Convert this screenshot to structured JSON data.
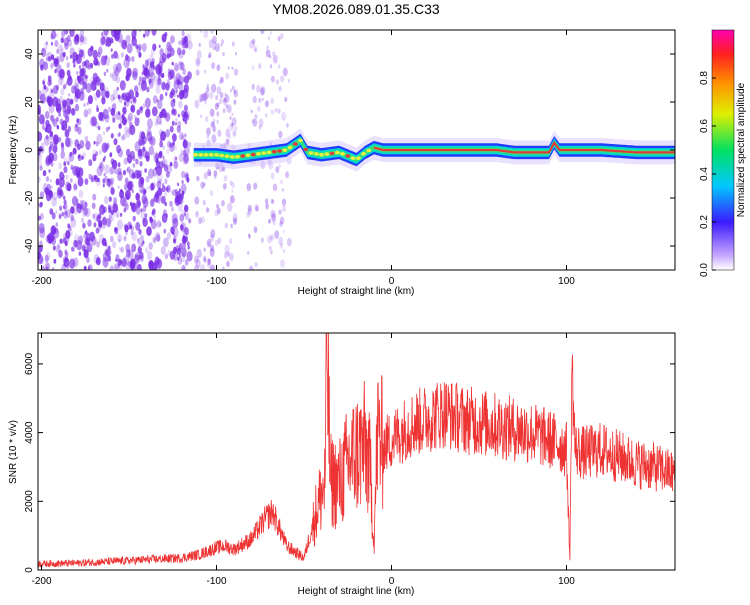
{
  "figure": {
    "title": "YM08.2026.089.01.35.C33"
  },
  "colors": {
    "scatter": "#7a2ee6",
    "band_edge": "#1f3cff",
    "band_mid": "#00d8c8",
    "band_peak": "#e23a3a",
    "snr_line": "#ee3333"
  },
  "chart_data": [
    {
      "type": "heatmap",
      "xlabel": "Height of straight line (km)",
      "ylabel": "Frequency (Hz)",
      "xlim": [
        -202,
        162
      ],
      "ylim": [
        -50,
        50
      ],
      "x_ticks": [
        -200,
        -100,
        0,
        100
      ],
      "y_ticks": [
        -40,
        -20,
        0,
        20,
        40
      ],
      "grid": false,
      "colorbar": {
        "label": "Normalized spectral amplitude",
        "range": [
          0,
          1
        ],
        "ticks": [
          "0.0",
          "0.2",
          "0.4",
          "0.6",
          "0.8"
        ],
        "tick_values": [
          0.0,
          0.2,
          0.4,
          0.6,
          0.8
        ],
        "colormap": "rainbow"
      },
      "noise_region_x": [
        -202,
        -115
      ],
      "sparse_noise_x": [
        -112,
        -58
      ],
      "band_centerline": {
        "x": [
          -113,
          -100,
          -90,
          -80,
          -70,
          -60,
          -52,
          -48,
          -40,
          -30,
          -20,
          -15,
          -10,
          -5,
          0,
          20,
          40,
          60,
          70,
          80,
          90,
          93,
          96,
          100,
          120,
          140,
          162
        ],
        "y": [
          -2,
          -2,
          -3,
          -2,
          -1,
          0,
          4,
          -1,
          -2,
          -1,
          -4,
          -1,
          1,
          0,
          0,
          0,
          0,
          0,
          -1,
          -1,
          -1,
          3,
          0,
          0,
          0,
          -1,
          -1
        ]
      }
    },
    {
      "type": "line",
      "xlabel": "Height of straight line (km)",
      "ylabel": "SNR (10 * v/v)",
      "xlim": [
        -202,
        162
      ],
      "ylim": [
        0,
        6900
      ],
      "x_ticks": [
        -200,
        -100,
        0,
        100
      ],
      "y_ticks": [
        0,
        2000,
        4000,
        6000
      ],
      "grid": false,
      "series": [
        {
          "x": [
            -202,
            -180,
            -160,
            -140,
            -120,
            -110,
            -100,
            -95,
            -90,
            -80,
            -72,
            -68,
            -60,
            -50,
            -42,
            -38,
            -37,
            -35,
            -30,
            -25,
            -20,
            -15,
            -12,
            -10,
            -8,
            -5,
            0,
            10,
            20,
            30,
            40,
            50,
            60,
            70,
            80,
            90,
            95,
            100,
            102,
            103,
            105,
            110,
            120,
            130,
            140,
            150,
            162
          ],
          "y": [
            180,
            200,
            250,
            300,
            350,
            450,
            650,
            700,
            600,
            900,
            1500,
            1700,
            700,
            350,
            1900,
            2500,
            6900,
            2600,
            2500,
            3100,
            3400,
            3600,
            2800,
            800,
            4000,
            3600,
            3800,
            4200,
            4400,
            4600,
            4400,
            4300,
            4200,
            4100,
            4000,
            3800,
            3700,
            3500,
            200,
            6000,
            3500,
            3400,
            3500,
            3300,
            3100,
            3000,
            2800
          ]
        }
      ]
    }
  ]
}
